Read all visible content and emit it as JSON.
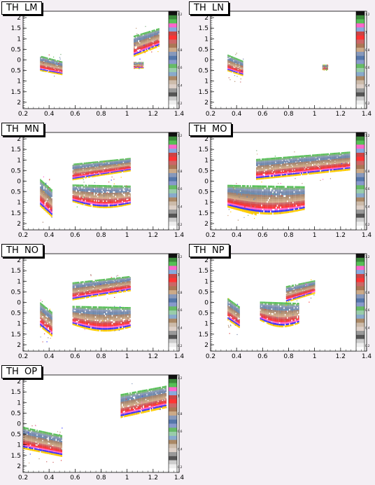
{
  "figure": {
    "x_axis": {
      "min": 0.2,
      "max": 1.4,
      "ticks": [
        0.2,
        0.4,
        0.6,
        0.8,
        1.0,
        1.2,
        1.4
      ],
      "tick_labels": [
        "0.2",
        "0.4",
        "0.6",
        "0.8",
        "1",
        "1.2",
        "1.4"
      ]
    },
    "y_axis": {
      "min": -2.3,
      "max": 2.3,
      "tick_values": [
        2,
        1.5,
        1,
        0.5,
        0,
        -0.5,
        -1,
        -1.5,
        -2
      ],
      "tick_labels": [
        "2",
        "1.5",
        "1",
        "0.5",
        "0",
        "0.5",
        "1",
        "1.5",
        "2"
      ]
    },
    "palette_tick_labels": [
      "1.2",
      "1",
      "0.8",
      "0.6",
      "0.4",
      "0.2"
    ],
    "palette_colors": [
      "#111111",
      "#3b8a3b",
      "#55c055",
      "#ff66cc",
      "#88aadd",
      "#cc4444",
      "#ff3333",
      "#cc6666",
      "#aa7755",
      "#ccaa88",
      "#8899bb",
      "#5577aa",
      "#8899cc",
      "#66bb66",
      "#99ccaa",
      "#88aacc",
      "#aa8866",
      "#ccbbaa",
      "#ddd0c8",
      "#999999",
      "#555555",
      "#cccccc",
      "#eeeeee",
      "#ffffff"
    ],
    "band_colors": [
      "#55c055",
      "#7fb07f",
      "#8899bb",
      "#7788aa",
      "#6a8ab0",
      "#a08070",
      "#b08f6f",
      "#c2a080",
      "#d4aa88",
      "#cc6666",
      "#dd4444",
      "#ff3333",
      "#ff66cc",
      "#3333ff",
      "#ffcc00"
    ]
  },
  "panels": [
    {
      "title": "TH  LM",
      "regions": [
        {
          "x0": 0.33,
          "x1": 0.5,
          "y_center": -0.35,
          "half_height": 0.55,
          "shape": "wedge-left"
        },
        {
          "x0": 1.05,
          "x1": 1.24,
          "y_center": 0.8,
          "half_height": 0.7,
          "shape": "fan-up"
        },
        {
          "x0": 1.05,
          "x1": 1.12,
          "y_center": -0.25,
          "half_height": 0.15,
          "shape": "blob"
        }
      ]
    },
    {
      "title": "TH  LN",
      "regions": [
        {
          "x0": 0.33,
          "x1": 0.45,
          "y_center": -0.35,
          "half_height": 0.6,
          "shape": "wedge-left"
        },
        {
          "x0": 1.06,
          "x1": 1.1,
          "y_center": -0.35,
          "half_height": 0.12,
          "shape": "blob"
        }
      ]
    },
    {
      "title": "TH  MN",
      "regions": [
        {
          "x0": 0.33,
          "x1": 0.42,
          "y_center": -0.9,
          "half_height": 1.0,
          "shape": "wedge-left"
        },
        {
          "x0": 0.58,
          "x1": 1.02,
          "y_center": 0.55,
          "half_height": 0.55,
          "shape": "fan-up"
        },
        {
          "x0": 0.58,
          "x1": 1.02,
          "y_center": -0.65,
          "half_height": 0.55,
          "shape": "fan-down"
        }
      ]
    },
    {
      "title": "TH  MO",
      "regions": [
        {
          "x0": 0.33,
          "x1": 0.55,
          "y_center": -1.0,
          "half_height": 0.8,
          "shape": "wedge-left"
        },
        {
          "x0": 0.55,
          "x1": 1.27,
          "y_center": 0.7,
          "half_height": 0.7,
          "shape": "fan-up"
        },
        {
          "x0": 0.33,
          "x1": 0.92,
          "y_center": -0.8,
          "half_height": 0.7,
          "shape": "fan-down"
        }
      ]
    },
    {
      "title": "TH  NO",
      "regions": [
        {
          "x0": 0.33,
          "x1": 0.42,
          "y_center": -0.9,
          "half_height": 0.9,
          "shape": "wedge-left"
        },
        {
          "x0": 0.58,
          "x1": 1.02,
          "y_center": 0.65,
          "half_height": 0.6,
          "shape": "fan-up"
        },
        {
          "x0": 0.58,
          "x1": 1.02,
          "y_center": -0.7,
          "half_height": 0.6,
          "shape": "fan-down"
        }
      ]
    },
    {
      "title": "TH  NP",
      "regions": [
        {
          "x0": 0.33,
          "x1": 0.42,
          "y_center": -0.6,
          "half_height": 0.8,
          "shape": "wedge-left"
        },
        {
          "x0": 0.78,
          "x1": 1.0,
          "y_center": 0.5,
          "half_height": 0.55,
          "shape": "fan-up"
        },
        {
          "x0": 0.58,
          "x1": 0.88,
          "y_center": -0.5,
          "half_height": 0.6,
          "shape": "fan-down"
        }
      ]
    },
    {
      "title": "TH  OP",
      "regions": [
        {
          "x0": 0.2,
          "x1": 0.5,
          "y_center": -0.95,
          "half_height": 0.8,
          "shape": "wedge-left"
        },
        {
          "x0": 0.95,
          "x1": 1.3,
          "y_center": 1.0,
          "half_height": 0.8,
          "shape": "fan-up"
        }
      ]
    }
  ],
  "chart_data": [
    {
      "type": "heatmap",
      "title": "TH  LM",
      "xlim": [
        0.2,
        1.4
      ],
      "ylim": [
        2.3,
        -2.3
      ],
      "xticks": [
        0.2,
        0.4,
        0.6,
        0.8,
        1,
        1.2,
        1.4
      ],
      "yticks": [
        "2",
        "1.5",
        "1",
        "0.5",
        "0",
        "0.5",
        "1",
        "1.5",
        "2"
      ],
      "zticks": [
        "0.2",
        "0.4",
        "0.6",
        "0.8",
        "1",
        "1.2"
      ],
      "grid": false
    },
    {
      "type": "heatmap",
      "title": "TH  LN",
      "xlim": [
        0.2,
        1.4
      ],
      "ylim": [
        2.3,
        -2.3
      ],
      "xticks": [
        0.2,
        0.4,
        0.6,
        0.8,
        1,
        1.2,
        1.4
      ],
      "yticks": [
        "2",
        "1.5",
        "1",
        "0.5",
        "0",
        "0.5",
        "1",
        "1.5",
        "2"
      ],
      "zticks": [
        "0.2",
        "0.4",
        "0.6",
        "0.8",
        "1",
        "1.2"
      ],
      "grid": false
    },
    {
      "type": "heatmap",
      "title": "TH  MN",
      "xlim": [
        0.2,
        1.4
      ],
      "ylim": [
        2.3,
        -2.3
      ],
      "xticks": [
        0.2,
        0.4,
        0.6,
        0.8,
        1,
        1.2,
        1.4
      ],
      "yticks": [
        "2",
        "1.5",
        "1",
        "0.5",
        "0",
        "0.5",
        "1",
        "1.5",
        "2"
      ],
      "zticks": [
        "0.2",
        "0.4",
        "0.6",
        "0.8",
        "1",
        "1.2"
      ],
      "grid": false
    },
    {
      "type": "heatmap",
      "title": "TH  MO",
      "xlim": [
        0.2,
        1.4
      ],
      "ylim": [
        2.3,
        -2.3
      ],
      "xticks": [
        0.2,
        0.4,
        0.6,
        0.8,
        1,
        1.2,
        1.4
      ],
      "yticks": [
        "2",
        "1.5",
        "1",
        "0.5",
        "0",
        "0.5",
        "1",
        "1.5",
        "2"
      ],
      "zticks": [
        "0.2",
        "0.4",
        "0.6",
        "0.8",
        "1",
        "1.2"
      ],
      "grid": false
    },
    {
      "type": "heatmap",
      "title": "TH  NO",
      "xlim": [
        0.2,
        1.4
      ],
      "ylim": [
        2.3,
        -2.3
      ],
      "xticks": [
        0.2,
        0.4,
        0.6,
        0.8,
        1,
        1.2,
        1.4
      ],
      "yticks": [
        "2",
        "1.5",
        "1",
        "0.5",
        "0",
        "0.5",
        "1",
        "1.5",
        "2"
      ],
      "zticks": [
        "0.2",
        "0.4",
        "0.6",
        "0.8",
        "1",
        "1.2"
      ],
      "grid": false
    },
    {
      "type": "heatmap",
      "title": "TH  NP",
      "xlim": [
        0.2,
        1.4
      ],
      "ylim": [
        2.3,
        -2.3
      ],
      "xticks": [
        0.2,
        0.4,
        0.6,
        0.8,
        1,
        1.2,
        1.4
      ],
      "yticks": [
        "2",
        "1.5",
        "1",
        "0.5",
        "0",
        "0.5",
        "1",
        "1.5",
        "2"
      ],
      "zticks": [
        "0.2",
        "0.4",
        "0.6",
        "0.8",
        "1",
        "1.2"
      ],
      "grid": false
    },
    {
      "type": "heatmap",
      "title": "TH  OP",
      "xlim": [
        0.2,
        1.4
      ],
      "ylim": [
        2.3,
        -2.3
      ],
      "xticks": [
        0.2,
        0.4,
        0.6,
        0.8,
        1,
        1.2,
        1.4
      ],
      "yticks": [
        "2",
        "1.5",
        "1",
        "0.5",
        "0",
        "0.5",
        "1",
        "1.5",
        "2"
      ],
      "zticks": [
        "0.2",
        "0.4",
        "0.6",
        "0.8",
        "1",
        "1.2"
      ],
      "grid": false
    }
  ]
}
